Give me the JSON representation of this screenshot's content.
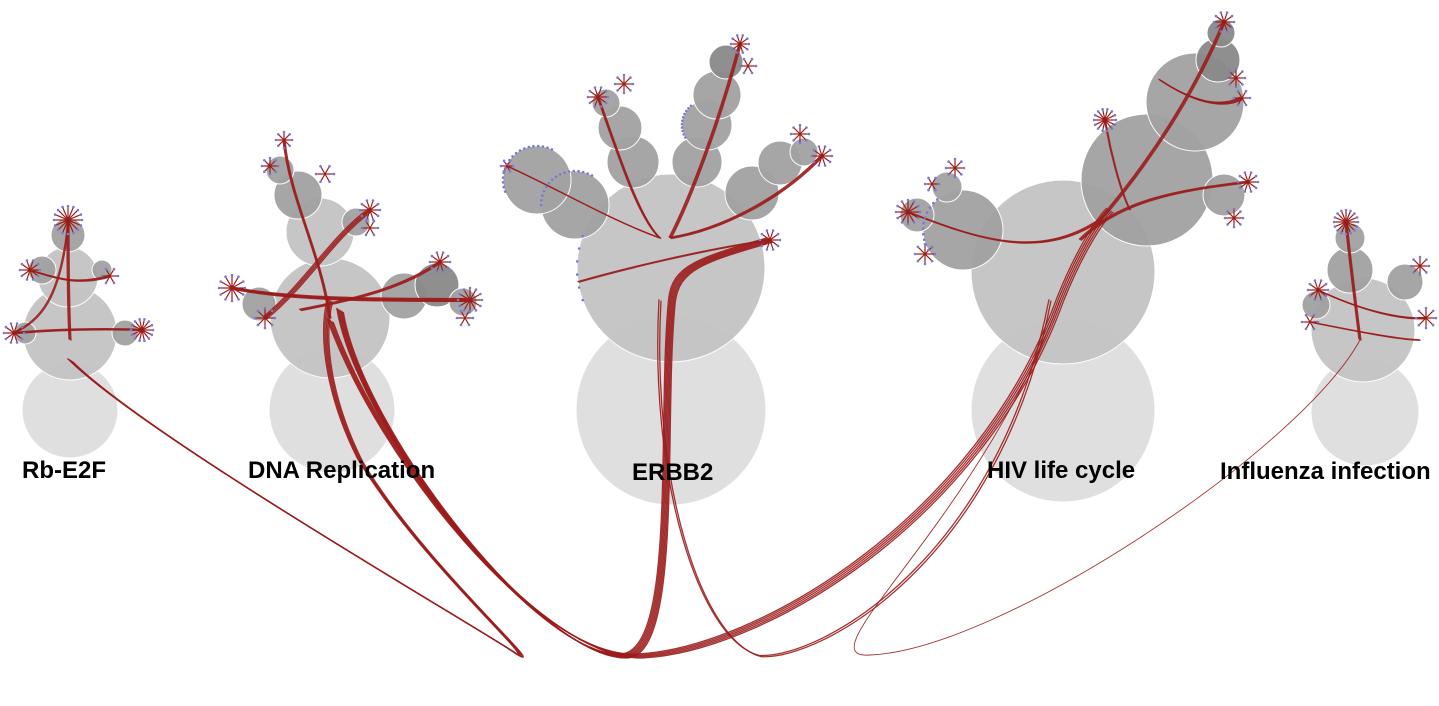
{
  "clusters": [
    {
      "id": "rb-e2f",
      "label": "Rb-E2F"
    },
    {
      "id": "dna-replication",
      "label": "DNA Replication"
    },
    {
      "id": "erbb2",
      "label": "ERBB2"
    },
    {
      "id": "hiv-life-cycle",
      "label": "HIV life cycle"
    },
    {
      "id": "influenza-infection",
      "label": "Influenza infection"
    }
  ],
  "colors": {
    "edge": "#9b1c1c",
    "circle_light": "#dedede",
    "circle_mid": "#c4c4c4",
    "circle_dark": "#a2a2a2",
    "circle_darker": "#8a8a8a",
    "node_dot": "#7a7ad0"
  }
}
